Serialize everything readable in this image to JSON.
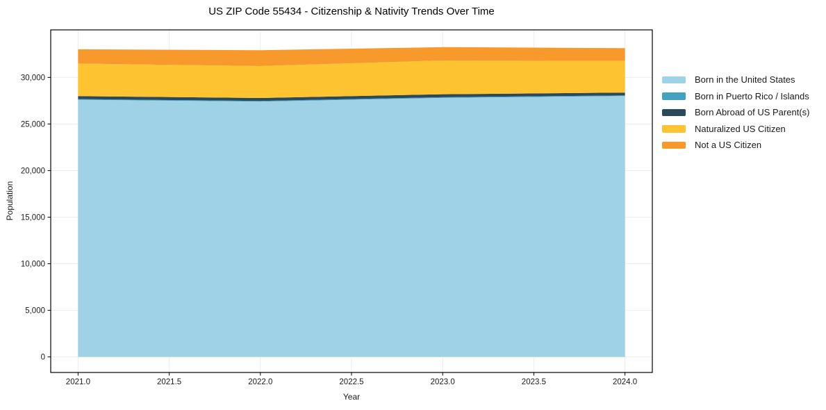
{
  "chart_data": {
    "type": "area",
    "stacked": true,
    "title": "US ZIP Code 55434 - Citizenship & Nativity Trends Over Time",
    "xlabel": "Year",
    "ylabel": "Population",
    "x": [
      2021,
      2022,
      2023,
      2024
    ],
    "series": [
      {
        "name": "Born in the United States",
        "color": "#a0d2e7",
        "values": [
          27600,
          27400,
          27800,
          28000
        ]
      },
      {
        "name": "Born in Puerto Rico / Islands",
        "color": "#44a2c1",
        "values": [
          70,
          70,
          70,
          70
        ]
      },
      {
        "name": "Born Abroad of US Parent(s)",
        "color": "#2a4a5c",
        "values": [
          320,
          320,
          320,
          300
        ]
      },
      {
        "name": "Naturalized US Citizen",
        "color": "#fdc330",
        "values": [
          3500,
          3430,
          3630,
          3390
        ]
      },
      {
        "name": "Not a US Citizen",
        "color": "#f8992c",
        "values": [
          1530,
          1700,
          1430,
          1380
        ]
      }
    ],
    "xlim": [
      2020.85,
      2024.15
    ],
    "ylim": [
      -1670,
      35100
    ],
    "xticks": [
      2021.0,
      2021.5,
      2022.0,
      2022.5,
      2023.0,
      2023.5,
      2024.0
    ],
    "xtick_labels": [
      "2021.0",
      "2021.5",
      "2022.0",
      "2022.5",
      "2023.0",
      "2023.5",
      "2024.0"
    ],
    "yticks": [
      0,
      5000,
      10000,
      15000,
      20000,
      25000,
      30000
    ],
    "ytick_labels": [
      "0",
      "5,000",
      "10,000",
      "15,000",
      "20,000",
      "25,000",
      "30,000"
    ],
    "grid": true,
    "legend_position": "right"
  },
  "colors": {
    "grid": "#ececec",
    "spine": "#000000",
    "tick_text": "#1a1a1a"
  }
}
